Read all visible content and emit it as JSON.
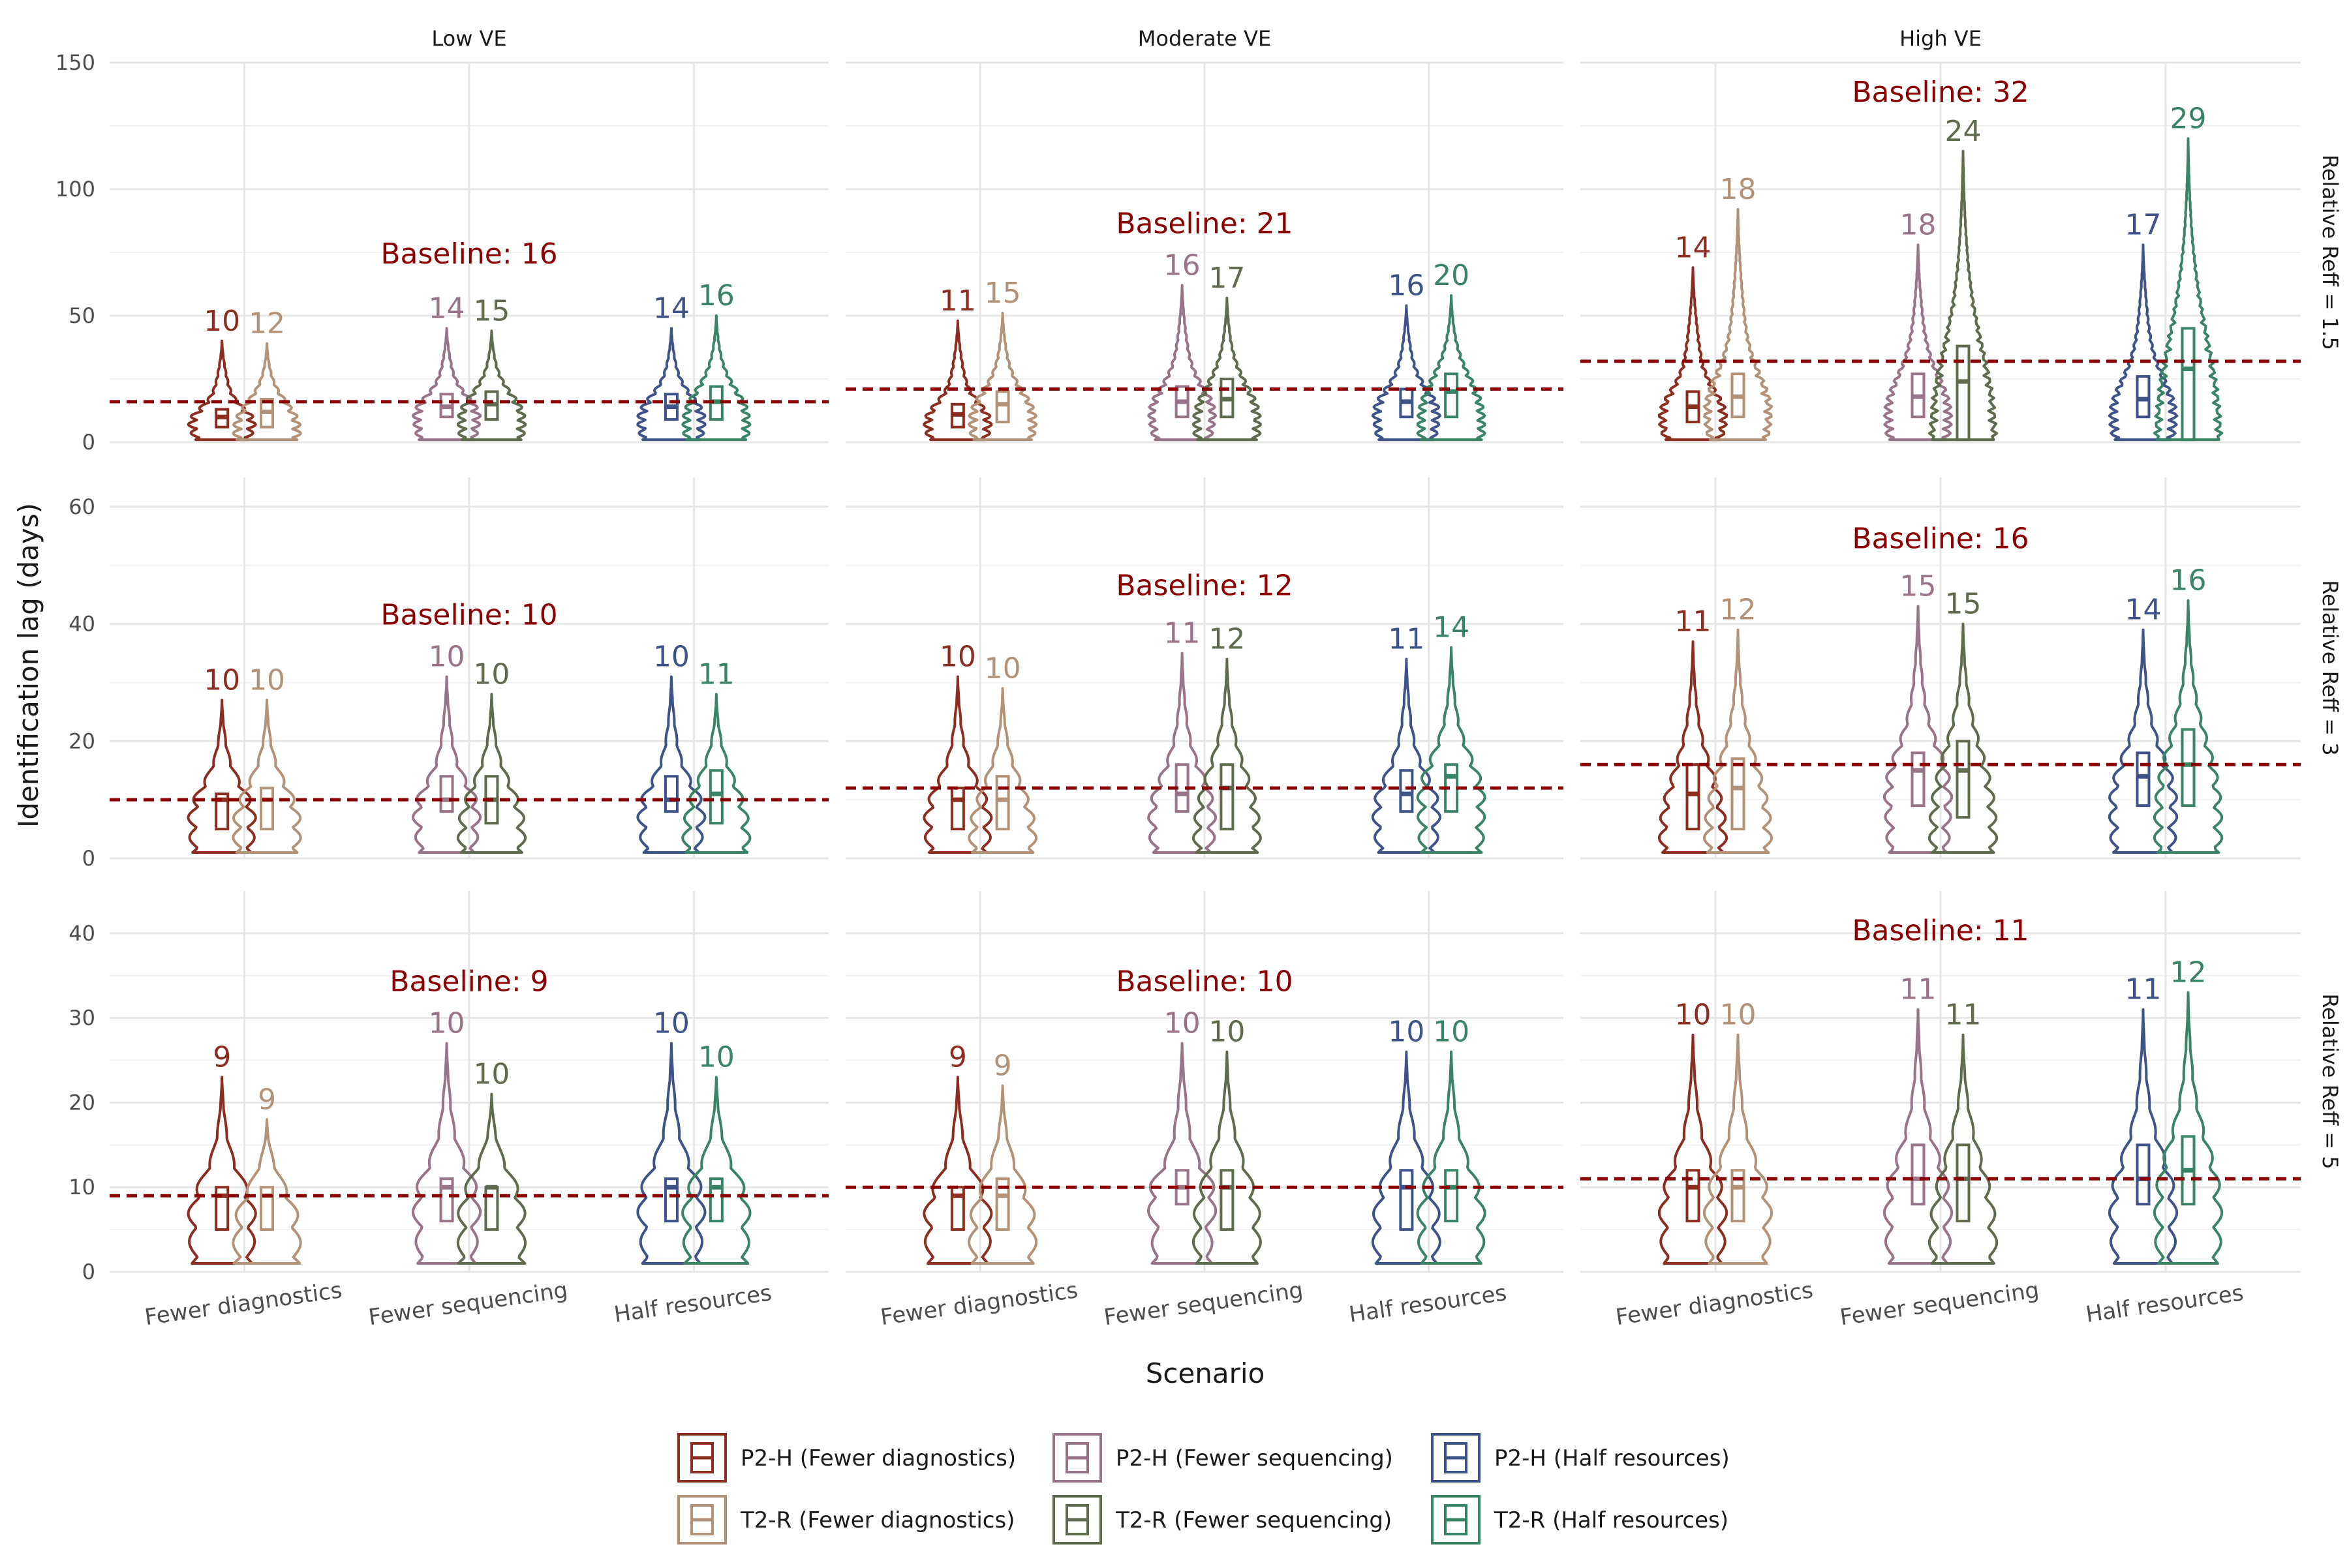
{
  "chart_data": {
    "type": "violin",
    "xlabel": "Scenario",
    "ylabel": "Identification lag (days)",
    "col_facets": [
      "Low VE",
      "Moderate VE",
      "High VE"
    ],
    "row_facets": [
      "Relative Reff = 1.5",
      "Relative Reff = 3",
      "Relative Reff = 5"
    ],
    "categories": [
      "Fewer diagnostics",
      "Fewer sequencing",
      "Half resources"
    ],
    "series": [
      {
        "name": "P2-H (Fewer diagnostics)",
        "color": "#8B2E1F"
      },
      {
        "name": "T2-R (Fewer diagnostics)",
        "color": "#B39278"
      },
      {
        "name": "P2-H (Fewer sequencing)",
        "color": "#997388"
      },
      {
        "name": "T2-R (Fewer sequencing)",
        "color": "#5F6B4E"
      },
      {
        "name": "P2-H (Half resources)",
        "color": "#3E5488"
      },
      {
        "name": "T2-R (Half resources)",
        "color": "#3A8466"
      }
    ],
    "baseline_color": "#8B0000",
    "legend_position": "bottom",
    "grid": true,
    "rows": [
      {
        "ylim": [
          0,
          150
        ],
        "yticks": [
          0,
          50,
          100,
          150
        ],
        "panels": [
          {
            "baseline": 16,
            "baseline_label": "Baseline: 16",
            "violins": [
              {
                "median": 10,
                "label": "10",
                "q1": 6,
                "q3": 13,
                "max": 40
              },
              {
                "median": 12,
                "label": "12",
                "q1": 6,
                "q3": 17,
                "max": 39
              },
              {
                "median": 14,
                "label": "14",
                "q1": 10,
                "q3": 19,
                "max": 45
              },
              {
                "median": 15,
                "label": "15",
                "q1": 9,
                "q3": 20,
                "max": 44
              },
              {
                "median": 14,
                "label": "14",
                "q1": 9,
                "q3": 19,
                "max": 45
              },
              {
                "median": 16,
                "label": "16",
                "q1": 9,
                "q3": 22,
                "max": 50
              }
            ]
          },
          {
            "baseline": 21,
            "baseline_label": "Baseline: 21",
            "violins": [
              {
                "median": 11,
                "label": "11",
                "q1": 6,
                "q3": 15,
                "max": 48
              },
              {
                "median": 15,
                "label": "15",
                "q1": 8,
                "q3": 20,
                "max": 51
              },
              {
                "median": 16,
                "label": "16",
                "q1": 10,
                "q3": 22,
                "max": 62
              },
              {
                "median": 17,
                "label": "17",
                "q1": 10,
                "q3": 25,
                "max": 57
              },
              {
                "median": 16,
                "label": "16",
                "q1": 10,
                "q3": 21,
                "max": 54
              },
              {
                "median": 20,
                "label": "20",
                "q1": 10,
                "q3": 27,
                "max": 58
              }
            ]
          },
          {
            "baseline": 32,
            "baseline_label": "Baseline: 32",
            "violins": [
              {
                "median": 14,
                "label": "14",
                "q1": 8,
                "q3": 20,
                "max": 69
              },
              {
                "median": 18,
                "label": "18",
                "q1": 10,
                "q3": 27,
                "max": 92
              },
              {
                "median": 18,
                "label": "18",
                "q1": 10,
                "q3": 27,
                "max": 78
              },
              {
                "median": 24,
                "label": "24",
                "q1": 1,
                "q3": 38,
                "max": 115
              },
              {
                "median": 17,
                "label": "17",
                "q1": 10,
                "q3": 26,
                "max": 78
              },
              {
                "median": 29,
                "label": "29",
                "q1": 1,
                "q3": 45,
                "max": 120
              }
            ]
          }
        ]
      },
      {
        "ylim": [
          0,
          65
        ],
        "yticks": [
          0,
          20,
          40,
          60
        ],
        "panels": [
          {
            "baseline": 10,
            "baseline_label": "Baseline: 10",
            "violins": [
              {
                "median": 10,
                "label": "10",
                "q1": 5,
                "q3": 11,
                "max": 27
              },
              {
                "median": 10,
                "label": "10",
                "q1": 5,
                "q3": 12,
                "max": 27
              },
              {
                "median": 10,
                "label": "10",
                "q1": 8,
                "q3": 14,
                "max": 31
              },
              {
                "median": 10,
                "label": "10",
                "q1": 6,
                "q3": 14,
                "max": 28
              },
              {
                "median": 10,
                "label": "10",
                "q1": 8,
                "q3": 14,
                "max": 31
              },
              {
                "median": 11,
                "label": "11",
                "q1": 6,
                "q3": 15,
                "max": 28
              }
            ]
          },
          {
            "baseline": 12,
            "baseline_label": "Baseline: 12",
            "violins": [
              {
                "median": 10,
                "label": "10",
                "q1": 5,
                "q3": 12,
                "max": 31
              },
              {
                "median": 10,
                "label": "10",
                "q1": 5,
                "q3": 14,
                "max": 29
              },
              {
                "median": 11,
                "label": "11",
                "q1": 8,
                "q3": 16,
                "max": 35
              },
              {
                "median": 12,
                "label": "12",
                "q1": 5,
                "q3": 16,
                "max": 34
              },
              {
                "median": 11,
                "label": "11",
                "q1": 8,
                "q3": 15,
                "max": 34
              },
              {
                "median": 14,
                "label": "14",
                "q1": 8,
                "q3": 16,
                "max": 36
              }
            ]
          },
          {
            "baseline": 16,
            "baseline_label": "Baseline: 16",
            "violins": [
              {
                "median": 11,
                "label": "11",
                "q1": 5,
                "q3": 16,
                "max": 37
              },
              {
                "median": 12,
                "label": "12",
                "q1": 5,
                "q3": 17,
                "max": 39
              },
              {
                "median": 15,
                "label": "15",
                "q1": 9,
                "q3": 18,
                "max": 43
              },
              {
                "median": 15,
                "label": "15",
                "q1": 7,
                "q3": 20,
                "max": 40
              },
              {
                "median": 14,
                "label": "14",
                "q1": 9,
                "q3": 18,
                "max": 39
              },
              {
                "median": 16,
                "label": "16",
                "q1": 9,
                "q3": 22,
                "max": 44
              }
            ]
          }
        ]
      },
      {
        "ylim": [
          0,
          45
        ],
        "yticks": [
          0,
          10,
          20,
          30,
          40
        ],
        "panels": [
          {
            "baseline": 9,
            "baseline_label": "Baseline: 9",
            "violins": [
              {
                "median": 9,
                "label": "9",
                "q1": 5,
                "q3": 10,
                "max": 23
              },
              {
                "median": 9,
                "label": "9",
                "q1": 5,
                "q3": 10,
                "max": 18
              },
              {
                "median": 10,
                "label": "10",
                "q1": 6,
                "q3": 11,
                "max": 27
              },
              {
                "median": 10,
                "label": "10",
                "q1": 5,
                "q3": 10,
                "max": 21
              },
              {
                "median": 10,
                "label": "10",
                "q1": 6,
                "q3": 11,
                "max": 27
              },
              {
                "median": 10,
                "label": "10",
                "q1": 6,
                "q3": 11,
                "max": 23
              }
            ]
          },
          {
            "baseline": 10,
            "baseline_label": "Baseline: 10",
            "violins": [
              {
                "median": 9,
                "label": "9",
                "q1": 5,
                "q3": 10,
                "max": 23
              },
              {
                "median": 9,
                "label": "9",
                "q1": 5,
                "q3": 11,
                "max": 22
              },
              {
                "median": 10,
                "label": "10",
                "q1": 8,
                "q3": 12,
                "max": 27
              },
              {
                "median": 10,
                "label": "10",
                "q1": 5,
                "q3": 12,
                "max": 26
              },
              {
                "median": 10,
                "label": "10",
                "q1": 5,
                "q3": 12,
                "max": 26
              },
              {
                "median": 10,
                "label": "10",
                "q1": 6,
                "q3": 12,
                "max": 26
              }
            ]
          },
          {
            "baseline": 11,
            "baseline_label": "Baseline: 11",
            "violins": [
              {
                "median": 10,
                "label": "10",
                "q1": 6,
                "q3": 12,
                "max": 28
              },
              {
                "median": 10,
                "label": "10",
                "q1": 6,
                "q3": 12,
                "max": 28
              },
              {
                "median": 11,
                "label": "11",
                "q1": 8,
                "q3": 15,
                "max": 31
              },
              {
                "median": 11,
                "label": "11",
                "q1": 6,
                "q3": 15,
                "max": 28
              },
              {
                "median": 11,
                "label": "11",
                "q1": 8,
                "q3": 15,
                "max": 31
              },
              {
                "median": 12,
                "label": "12",
                "q1": 8,
                "q3": 16,
                "max": 33
              }
            ]
          }
        ]
      }
    ]
  }
}
